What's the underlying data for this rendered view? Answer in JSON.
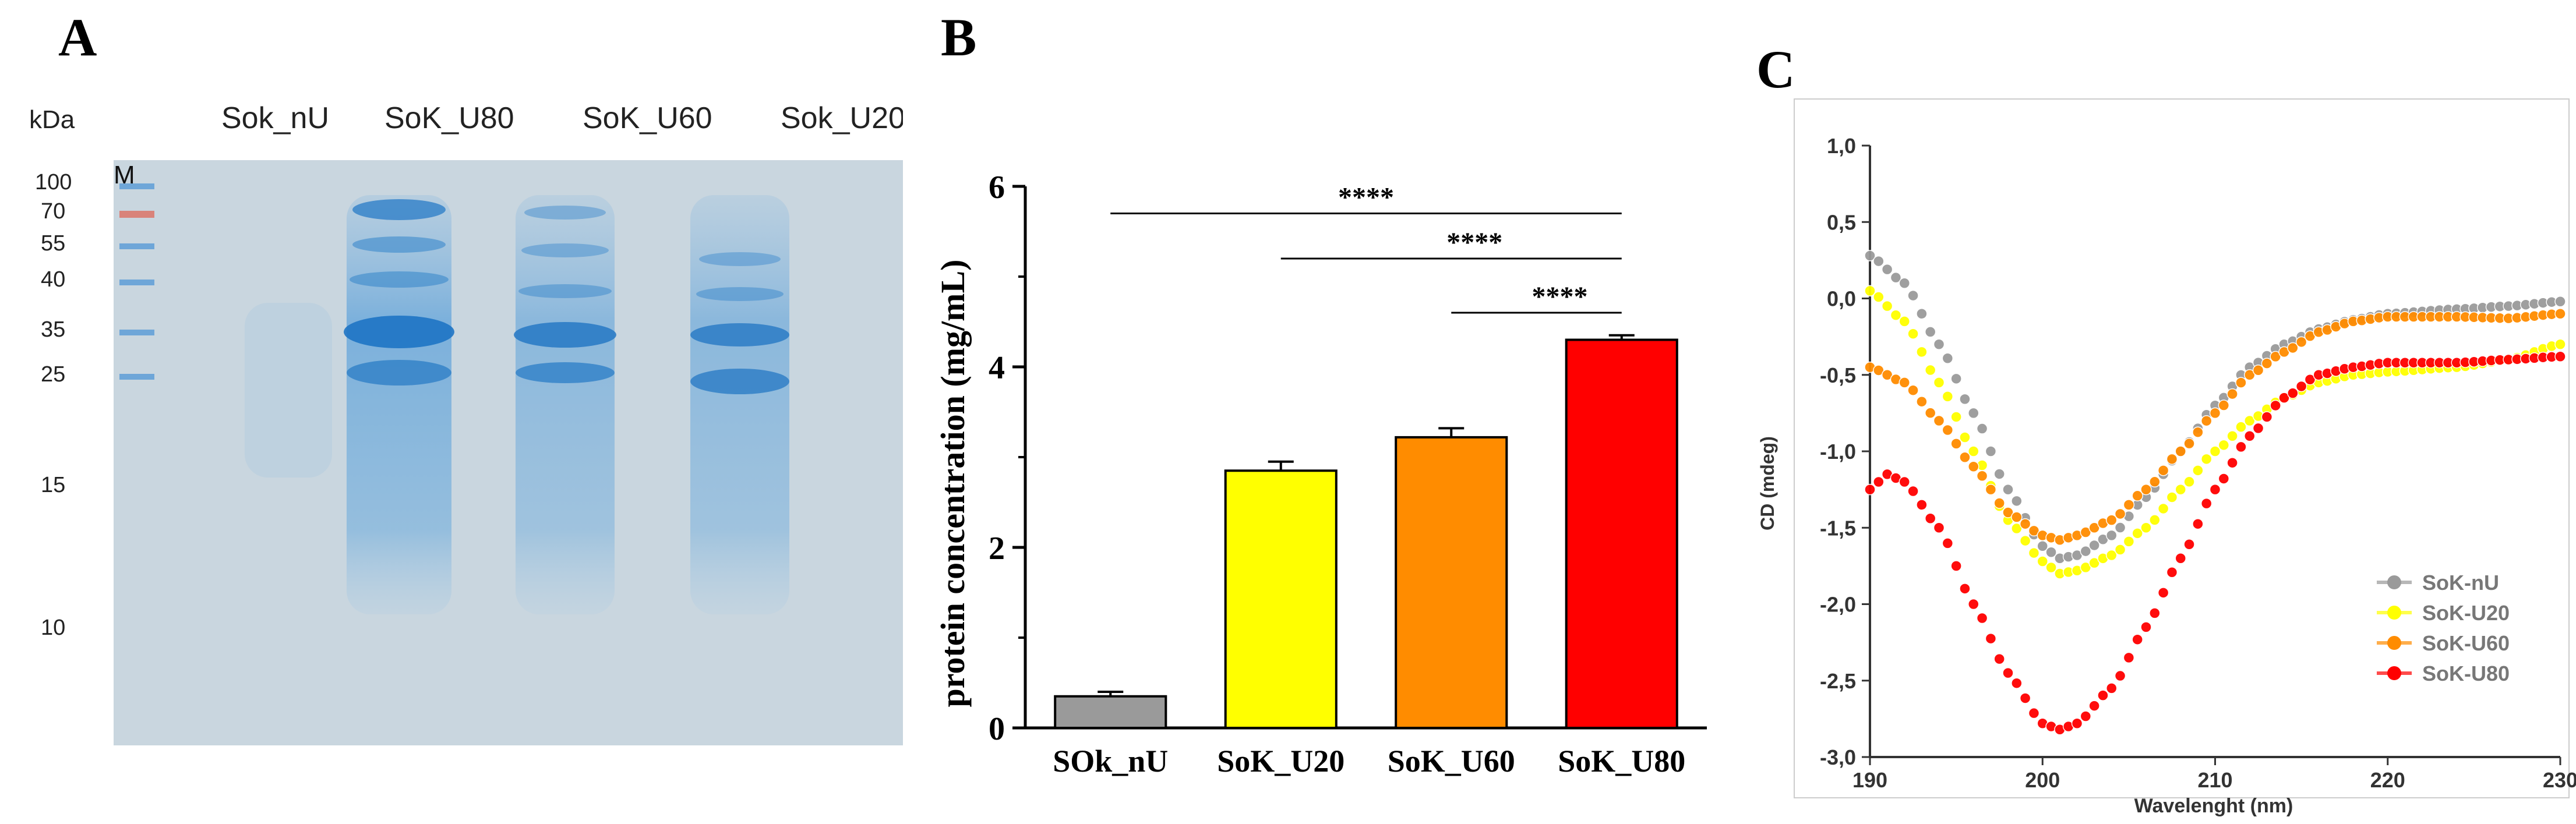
{
  "panel_a": {
    "label": "A",
    "kda_label": "kDa",
    "marker_label": "M",
    "lane_labels": [
      "Sok_nU",
      "SoK_U80",
      "SoK_U60",
      "Sok_U20"
    ],
    "ladder_kda": [
      "100",
      "70",
      "55",
      "40",
      "35",
      "25",
      "15",
      "10"
    ]
  },
  "chart_data": [
    {
      "type": "bar",
      "panel_label": "B",
      "categories": [
        "SOk_nU",
        "SoK_U20",
        "SoK_U60",
        "SoK_U80"
      ],
      "values": [
        0.35,
        2.85,
        3.22,
        4.3
      ],
      "errors": [
        0.05,
        0.1,
        0.1,
        0.05
      ],
      "colors": [
        "#9a9a9a",
        "#ffff00",
        "#ff8c00",
        "#ff0000"
      ],
      "ylabel": "protein concentration (mg/mL)",
      "ylim": [
        0,
        6
      ],
      "yticks": [
        "0",
        "2",
        "4",
        "6"
      ],
      "significance": [
        {
          "from": 0,
          "to": 3,
          "label": "****",
          "y": 5.7
        },
        {
          "from": 1,
          "to": 3,
          "label": "****",
          "y": 5.2
        },
        {
          "from": 2,
          "to": 3,
          "label": "****",
          "y": 4.6
        }
      ]
    },
    {
      "type": "line",
      "panel_label": "C",
      "xlabel": "Wavelenght (nm)",
      "ylabel": "CD (mdeg)",
      "xlim": [
        190,
        230
      ],
      "ylim": [
        -3.0,
        1.0
      ],
      "xticks": [
        "190",
        "200",
        "210",
        "220",
        "230"
      ],
      "yticks": [
        "1,0",
        "0,5",
        "0,0",
        "-0,5",
        "-1,0",
        "-1,5",
        "-2,0",
        "-2,5",
        "-3,0"
      ],
      "legend_position": "bottom-right",
      "series": [
        {
          "name": "SoK-nU",
          "color": "#9a9a9a",
          "points": [
            [
              190,
              0.28
            ],
            [
              192,
              0.1
            ],
            [
              194,
              -0.3
            ],
            [
              196,
              -0.75
            ],
            [
              198,
              -1.25
            ],
            [
              200,
              -1.62
            ],
            [
              201,
              -1.7
            ],
            [
              202,
              -1.68
            ],
            [
              204,
              -1.55
            ],
            [
              206,
              -1.3
            ],
            [
              208,
              -1.0
            ],
            [
              210,
              -0.7
            ],
            [
              212,
              -0.45
            ],
            [
              214,
              -0.3
            ],
            [
              216,
              -0.2
            ],
            [
              218,
              -0.14
            ],
            [
              220,
              -0.1
            ],
            [
              224,
              -0.07
            ],
            [
              227,
              -0.05
            ],
            [
              230,
              -0.02
            ]
          ]
        },
        {
          "name": "SoK-U20",
          "color": "#ffff00",
          "points": [
            [
              190,
              0.05
            ],
            [
              192,
              -0.15
            ],
            [
              194,
              -0.55
            ],
            [
              196,
              -1.0
            ],
            [
              198,
              -1.45
            ],
            [
              200,
              -1.72
            ],
            [
              201,
              -1.8
            ],
            [
              202,
              -1.78
            ],
            [
              204,
              -1.68
            ],
            [
              206,
              -1.5
            ],
            [
              208,
              -1.25
            ],
            [
              210,
              -1.0
            ],
            [
              212,
              -0.8
            ],
            [
              214,
              -0.65
            ],
            [
              216,
              -0.55
            ],
            [
              218,
              -0.5
            ],
            [
              220,
              -0.48
            ],
            [
              224,
              -0.45
            ],
            [
              227,
              -0.4
            ],
            [
              230,
              -0.3
            ]
          ]
        },
        {
          "name": "SoK-U60",
          "color": "#ff8c00",
          "points": [
            [
              190,
              -0.45
            ],
            [
              192,
              -0.55
            ],
            [
              194,
              -0.8
            ],
            [
              196,
              -1.1
            ],
            [
              198,
              -1.4
            ],
            [
              200,
              -1.55
            ],
            [
              201,
              -1.58
            ],
            [
              202,
              -1.55
            ],
            [
              204,
              -1.45
            ],
            [
              206,
              -1.25
            ],
            [
              208,
              -1.0
            ],
            [
              210,
              -0.75
            ],
            [
              212,
              -0.5
            ],
            [
              214,
              -0.35
            ],
            [
              216,
              -0.22
            ],
            [
              218,
              -0.15
            ],
            [
              220,
              -0.12
            ],
            [
              224,
              -0.12
            ],
            [
              227,
              -0.13
            ],
            [
              230,
              -0.1
            ]
          ]
        },
        {
          "name": "SoK-U80",
          "color": "#ff0000",
          "points": [
            [
              190,
              -1.25
            ],
            [
              191,
              -1.15
            ],
            [
              192,
              -1.2
            ],
            [
              194,
              -1.5
            ],
            [
              196,
              -2.0
            ],
            [
              198,
              -2.45
            ],
            [
              200,
              -2.78
            ],
            [
              201,
              -2.82
            ],
            [
              202,
              -2.78
            ],
            [
              204,
              -2.55
            ],
            [
              206,
              -2.15
            ],
            [
              208,
              -1.7
            ],
            [
              210,
              -1.25
            ],
            [
              212,
              -0.9
            ],
            [
              214,
              -0.65
            ],
            [
              216,
              -0.5
            ],
            [
              218,
              -0.45
            ],
            [
              220,
              -0.42
            ],
            [
              224,
              -0.42
            ],
            [
              227,
              -0.4
            ],
            [
              230,
              -0.38
            ]
          ]
        }
      ]
    }
  ]
}
